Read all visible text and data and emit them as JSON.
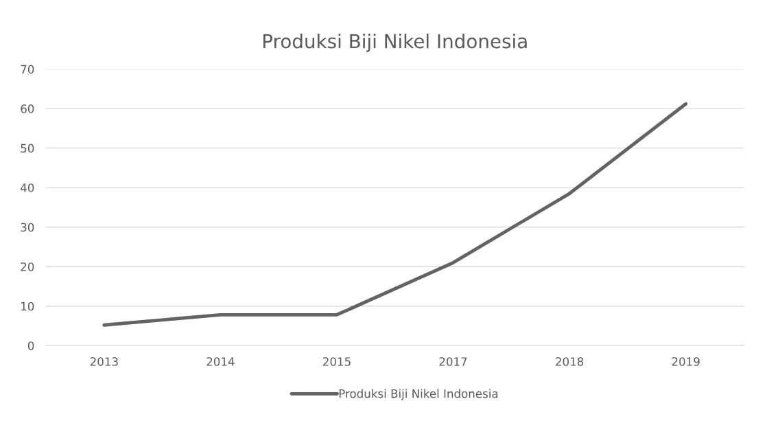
{
  "chart_data": {
    "type": "line",
    "title": "Produksi Biji Nikel Indonesia",
    "categories": [
      "2013",
      "2014",
      "2015",
      "2017",
      "2018",
      "2019"
    ],
    "series": [
      {
        "name": "Produksi Biji Nikel Indonesia",
        "color": "#636363",
        "values": [
          5.2,
          7.8,
          7.8,
          21.0,
          38.5,
          61.2
        ]
      }
    ],
    "ylim": [
      0,
      70
    ],
    "yticks": [
      0,
      10,
      20,
      30,
      40,
      50,
      60,
      70
    ],
    "grid": "y",
    "legend": "bottom",
    "marker": "none",
    "line_style": "solid"
  }
}
